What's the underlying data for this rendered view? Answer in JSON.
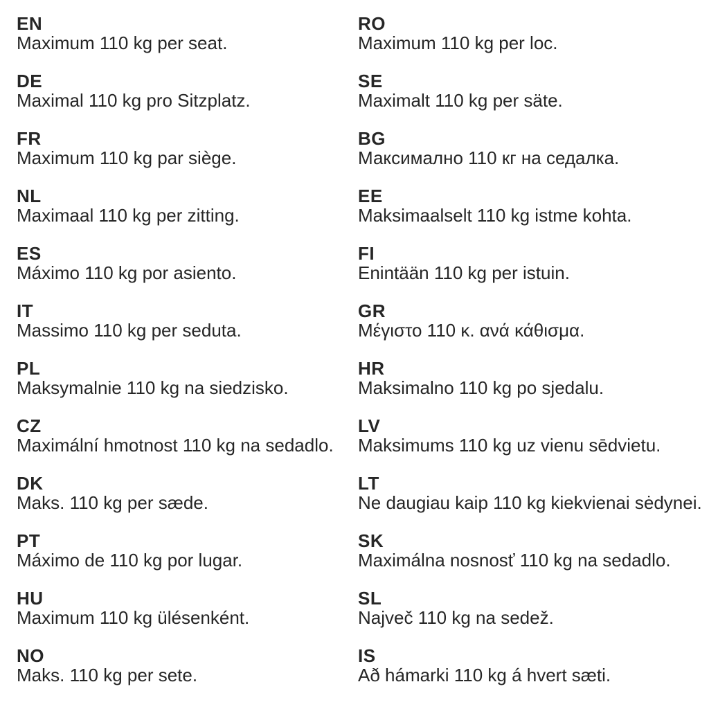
{
  "page": {
    "background_color": "#ffffff",
    "text_color": "#262626",
    "description": "Multilingual product label: maximum load per seat"
  },
  "columns": {
    "left": [
      {
        "code": "EN",
        "text": "Maximum 110 kg per seat."
      },
      {
        "code": "DE",
        "text": "Maximal 110 kg pro Sitzplatz."
      },
      {
        "code": "FR",
        "text": "Maximum 110 kg par siège."
      },
      {
        "code": "NL",
        "text": "Maximaal 110 kg per zitting."
      },
      {
        "code": "ES",
        "text": "Máximo 110 kg por asiento."
      },
      {
        "code": "IT",
        "text": "Massimo 110 kg per seduta."
      },
      {
        "code": "PL",
        "text": "Maksymalnie 110 kg na siedzisko."
      },
      {
        "code": "CZ",
        "text": "Maximální hmotnost 110 kg na sedadlo."
      },
      {
        "code": "DK",
        "text": "Maks. 110 kg per sæde."
      },
      {
        "code": "PT",
        "text": "Máximo de 110 kg por lugar."
      },
      {
        "code": "HU",
        "text": "Maximum 110 kg ülésenként."
      },
      {
        "code": "NO",
        "text": "Maks. 110 kg per sete."
      }
    ],
    "right": [
      {
        "code": "RO",
        "text": "Maximum 110 kg per loc."
      },
      {
        "code": "SE",
        "text": "Maximalt 110 kg per säte."
      },
      {
        "code": "BG",
        "text": "Максимално 110 кг на седалка."
      },
      {
        "code": "EE",
        "text": "Maksimaalselt 110 kg istme kohta."
      },
      {
        "code": "FI",
        "text": "Enintään 110 kg per istuin."
      },
      {
        "code": "GR",
        "text": "Μέγιστο 110 κ. ανά κάθισμα."
      },
      {
        "code": "HR",
        "text": "Maksimalno 110 kg po sjedalu."
      },
      {
        "code": "LV",
        "text": "Maksimums 110 kg uz vienu sēdvietu."
      },
      {
        "code": "LT",
        "text": "Ne daugiau kaip 110 kg kiekvienai sėdynei."
      },
      {
        "code": "SK",
        "text": "Maximálna nosnosť 110 kg na sedadlo."
      },
      {
        "code": "SL",
        "text": "Največ 110 kg na sedež."
      },
      {
        "code": "IS",
        "text": "Að hámarki 110 kg á hvert sæti."
      }
    ]
  }
}
